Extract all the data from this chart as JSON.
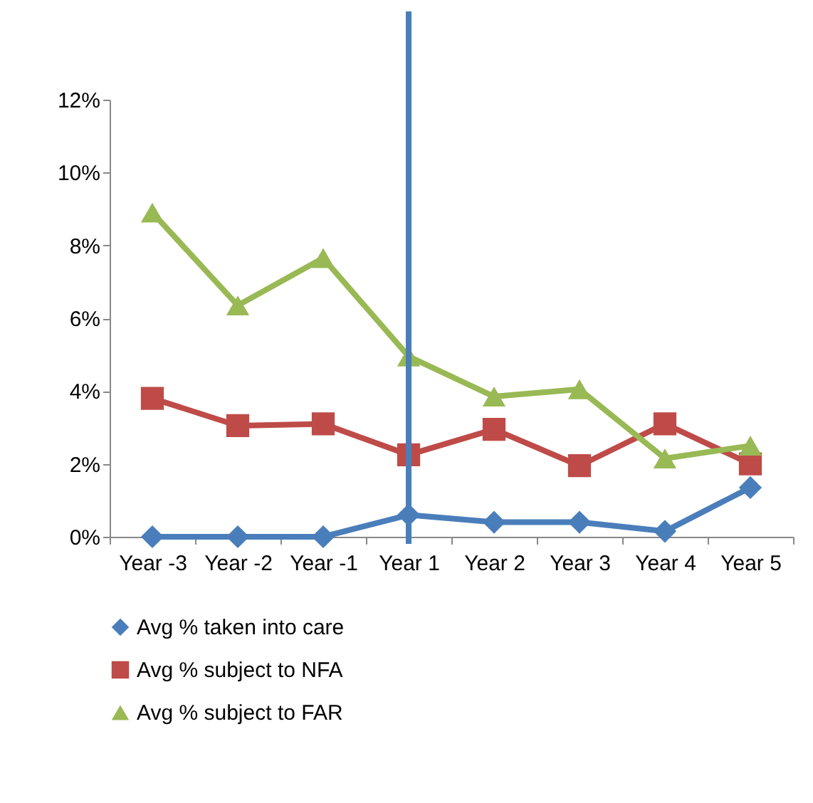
{
  "chart_data": {
    "type": "line",
    "categories": [
      "Year -3",
      "Year -2",
      "Year -1",
      "Year 1",
      "Year 2",
      "Year 3",
      "Year 4",
      "Year 5"
    ],
    "series": [
      {
        "name": "Avg % taken into care",
        "color": "#4a7ebb",
        "marker": "diamond",
        "values": [
          0,
          0,
          0,
          0.6,
          0.4,
          0.4,
          0.15,
          1.35
        ]
      },
      {
        "name": "Avg % subject to NFA",
        "color": "#be4b48",
        "marker": "square",
        "values": [
          3.8,
          3.05,
          3.1,
          2.25,
          2.95,
          1.95,
          3.1,
          2.0
        ]
      },
      {
        "name": "Avg % subject to FAR",
        "color": "#98b954",
        "marker": "triangle",
        "values": [
          8.9,
          6.35,
          7.65,
          4.95,
          3.85,
          4.05,
          2.15,
          2.5
        ]
      }
    ],
    "ylim": [
      0,
      12
    ],
    "yticks": [
      {
        "value": 0,
        "label": "0%"
      },
      {
        "value": 2,
        "label": "2%"
      },
      {
        "value": 4,
        "label": "4%"
      },
      {
        "value": 6,
        "label": "6%"
      },
      {
        "value": 8,
        "label": "8%"
      },
      {
        "value": 10,
        "label": "10%"
      },
      {
        "value": 12,
        "label": "12%"
      }
    ],
    "ref_lines": [
      {
        "axis": "x",
        "value": "Year 1",
        "color": "#4a7ebb"
      }
    ],
    "grid": false,
    "legend": "bottom"
  }
}
